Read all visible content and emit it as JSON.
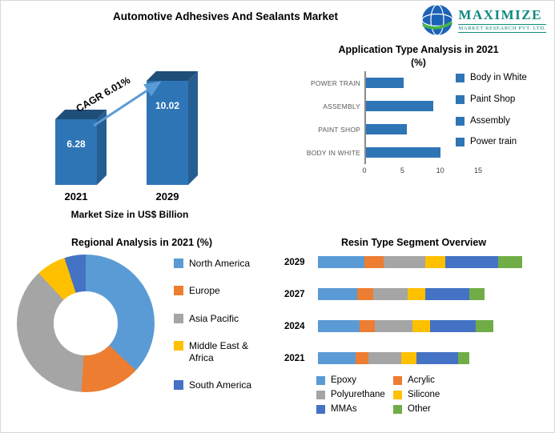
{
  "header": {
    "title": "Automotive Adhesives And Sealants Market",
    "logo": {
      "line1": "MAXIMIZE",
      "line2": "MARKET RESEARCH PVT. LTD."
    }
  },
  "colors": {
    "primary_bar": "#2e75b6",
    "logo_teal": "#12897f",
    "series": [
      "#5b9bd5",
      "#ed7d31",
      "#a5a5a5",
      "#ffc000",
      "#4472c4",
      "#70ad47"
    ]
  },
  "chart_data": [
    {
      "id": "market_size",
      "type": "bar",
      "title": "Market Size in US$ Billion",
      "categories": [
        "2021",
        "2029"
      ],
      "values": [
        6.28,
        10.02
      ],
      "value_labels": [
        "6.28",
        "10.02"
      ],
      "annotation": "CAGR 6.01%",
      "bar_color": "#2e75b6"
    },
    {
      "id": "application_type",
      "type": "bar",
      "orientation": "horizontal",
      "title": "Application Type Analysis in 2021",
      "subtitle": "(%)",
      "categories": [
        "POWER TRAIN",
        "ASSEMBLY",
        "PAINT SHOP",
        "BODY IN WHITE"
      ],
      "values": [
        5,
        9,
        5.5,
        10
      ],
      "xlim": [
        0,
        15
      ],
      "xticks": [
        "0",
        "5",
        "10",
        "15"
      ],
      "bar_color": "#2e75b6",
      "legend": [
        "Body in White",
        "Paint Shop",
        "Assembly",
        "Power train"
      ]
    },
    {
      "id": "regional",
      "type": "pie",
      "title": "Regional Analysis in 2021 (%)",
      "labels": [
        "North America",
        "Europe",
        "Asia Pacific",
        "Middle East & Africa",
        "South America"
      ],
      "values": [
        37,
        14,
        37,
        7,
        5
      ],
      "colors": [
        "#5b9bd5",
        "#ed7d31",
        "#a5a5a5",
        "#ffc000",
        "#4472c4"
      ]
    },
    {
      "id": "resin_type",
      "type": "bar",
      "stacked": true,
      "orientation": "horizontal",
      "title": "Resin Type Segment Overview",
      "categories": [
        "2029",
        "2027",
        "2024",
        "2021"
      ],
      "series": [
        {
          "name": "Epoxy",
          "color": "#5b9bd5",
          "values": [
            2.1,
            1.8,
            1.9,
            1.7
          ]
        },
        {
          "name": "Acrylic",
          "color": "#ed7d31",
          "values": [
            0.9,
            0.7,
            0.7,
            0.6
          ]
        },
        {
          "name": "Polyurethane",
          "color": "#a5a5a5",
          "values": [
            1.9,
            1.6,
            1.7,
            1.5
          ]
        },
        {
          "name": "Silicone",
          "color": "#ffc000",
          "values": [
            0.9,
            0.8,
            0.8,
            0.7
          ]
        },
        {
          "name": "MMAs",
          "color": "#4472c4",
          "values": [
            2.4,
            2.0,
            2.1,
            1.9
          ]
        },
        {
          "name": "Other",
          "color": "#70ad47",
          "values": [
            1.1,
            0.7,
            0.8,
            0.5
          ]
        }
      ]
    }
  ]
}
